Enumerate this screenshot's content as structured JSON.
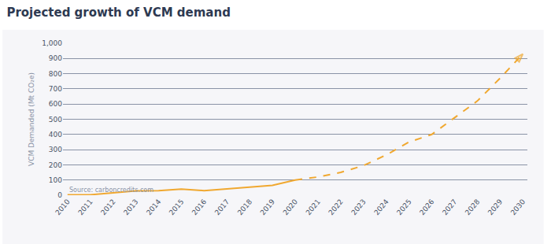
{
  "chart_data": {
    "type": "line",
    "title": "Projected growth of VCM demand",
    "y_label": "VCM Demanded (Mt CO₂e)",
    "source": "Source: carboncredits.com",
    "categories": [
      "2010",
      "2011",
      "2012",
      "2013",
      "2014",
      "2015",
      "2016",
      "2017",
      "2018",
      "2019",
      "2020",
      "2021",
      "2022",
      "2023",
      "2024",
      "2025",
      "2026",
      "2027",
      "2028",
      "2029",
      "2030"
    ],
    "series": [
      {
        "color": "#f0a830",
        "line_style": "solid",
        "values": [
          2,
          3,
          15,
          28,
          30,
          40,
          30,
          42,
          52,
          65,
          100,
          null,
          null,
          null,
          null,
          null,
          null,
          null,
          null,
          null,
          null
        ]
      },
      {
        "color": "#f0a830",
        "line_style": "dashed",
        "marker": "arrow",
        "values": [
          null,
          null,
          null,
          null,
          null,
          null,
          null,
          null,
          null,
          null,
          100,
          120,
          150,
          195,
          265,
          350,
          400,
          510,
          620,
          770,
          930
        ]
      }
    ],
    "ylim": [
      0,
      1000
    ],
    "yticks": [
      0,
      100,
      200,
      300,
      400,
      500,
      600,
      700,
      800,
      900,
      {
        "value": 1000,
        "label": "1,000"
      }
    ],
    "grid": true
  }
}
